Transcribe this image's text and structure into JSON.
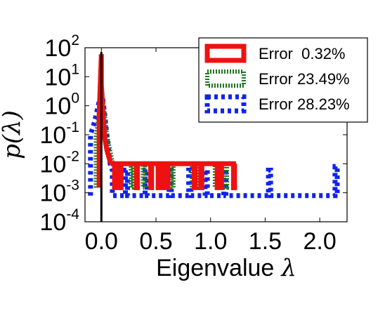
{
  "chart_data": {
    "type": "line",
    "xlabel": "Eigenvalue",
    "xlabel_symbol": "λ",
    "ylabel": "p(λ)",
    "xlim": [
      -0.15,
      2.25
    ],
    "yscale": "log",
    "ylim": [
      0.0001,
      100
    ],
    "xticks": [
      "0.0",
      "0.5",
      "1.0",
      "1.5",
      "2.0"
    ],
    "xtick_values": [
      0.0,
      0.5,
      1.0,
      1.5,
      2.0
    ],
    "yticks": [
      {
        "base": "10",
        "exp": "2",
        "value": 100
      },
      {
        "base": "10",
        "exp": "1",
        "value": 10
      },
      {
        "base": "10",
        "exp": "0",
        "value": 1
      },
      {
        "base": "10",
        "exp": "-1",
        "value": 0.1
      },
      {
        "base": "10",
        "exp": "-2",
        "value": 0.01
      },
      {
        "base": "10",
        "exp": "-3",
        "value": 0.001
      },
      {
        "base": "10",
        "exp": "-4",
        "value": 0.0001
      }
    ],
    "vertical_line_x": 0.0,
    "legend_placement": "top-right",
    "grid": false,
    "series": [
      {
        "name": "Error  0.32%",
        "color": "#ee1111",
        "style": "solid",
        "x": [
          -0.02,
          -0.02,
          0.0,
          0.0,
          0.01,
          0.02,
          0.03,
          0.05,
          0.08,
          0.1,
          0.12,
          0.12,
          0.13,
          0.13,
          0.17,
          0.17,
          0.18,
          0.18,
          0.32,
          0.32,
          0.33,
          0.33,
          0.45,
          0.45,
          0.46,
          0.46,
          0.52,
          0.52,
          0.53,
          0.53,
          0.55,
          0.55,
          0.56,
          0.56,
          0.6,
          0.6,
          0.61,
          0.61,
          0.85,
          0.85,
          0.86,
          0.86,
          0.91,
          0.91,
          0.92,
          0.92,
          1.06,
          1.06,
          1.07,
          1.07,
          1.09,
          1.09,
          1.1,
          1.1,
          1.21,
          1.21,
          1.22,
          1.22
        ],
        "y": [
          0.0015,
          0.5,
          60,
          5,
          1.0,
          0.3,
          0.08,
          0.03,
          0.012,
          0.01,
          0.01,
          0.0015,
          0.0015,
          0.01,
          0.01,
          0.0015,
          0.0015,
          0.01,
          0.01,
          0.0015,
          0.0015,
          0.01,
          0.01,
          0.0015,
          0.0015,
          0.01,
          0.01,
          0.0015,
          0.0015,
          0.01,
          0.01,
          0.0015,
          0.0015,
          0.01,
          0.01,
          0.0015,
          0.0015,
          0.01,
          0.01,
          0.0015,
          0.0015,
          0.01,
          0.01,
          0.0015,
          0.0015,
          0.01,
          0.01,
          0.0015,
          0.0015,
          0.01,
          0.01,
          0.0015,
          0.0015,
          0.01,
          0.01,
          0.0015,
          0.0015,
          0.01
        ]
      },
      {
        "name": "Error 23.49%",
        "color": "#227722",
        "style": "dotted-dense",
        "x": [
          -0.05,
          -0.05,
          -0.03,
          -0.01,
          0.0,
          0.01,
          0.03,
          0.05,
          0.08,
          0.1,
          0.12,
          0.12,
          0.14,
          0.14,
          0.27,
          0.27,
          0.29,
          0.29,
          0.38,
          0.38,
          0.4,
          0.4,
          0.53,
          0.53,
          0.55,
          0.55,
          0.64,
          0.64,
          0.66,
          0.66,
          0.83,
          0.83,
          0.85,
          0.85,
          0.9,
          0.9,
          0.92,
          0.92,
          1.04,
          1.04,
          1.06,
          1.06,
          1.13,
          1.13,
          1.15,
          1.15
        ],
        "y": [
          0.0015,
          0.08,
          0.3,
          2,
          8,
          2,
          0.5,
          0.1,
          0.03,
          0.012,
          0.01,
          0.0015,
          0.0015,
          0.01,
          0.01,
          0.0015,
          0.0015,
          0.01,
          0.01,
          0.0015,
          0.0015,
          0.01,
          0.01,
          0.0015,
          0.0015,
          0.01,
          0.01,
          0.0015,
          0.0015,
          0.01,
          0.01,
          0.0015,
          0.0015,
          0.01,
          0.01,
          0.0015,
          0.0015,
          0.01,
          0.01,
          0.0015,
          0.0015,
          0.01,
          0.01,
          0.0015,
          0.0015,
          0.01
        ]
      },
      {
        "name": "Error 28.23%",
        "color": "#1122ee",
        "style": "dotted",
        "x": [
          -0.1,
          -0.1,
          -0.06,
          -0.03,
          -0.01,
          0.0,
          0.01,
          0.03,
          0.05,
          0.08,
          0.1,
          0.1,
          0.22,
          0.22,
          0.24,
          0.24,
          0.4,
          0.4,
          0.42,
          0.42,
          0.62,
          0.62,
          0.64,
          0.64,
          0.8,
          0.8,
          0.82,
          0.82,
          0.95,
          0.95,
          0.97,
          0.97,
          1.12,
          1.12,
          1.14,
          1.14,
          1.53,
          1.53,
          1.55,
          1.55,
          2.14,
          2.14,
          2.16,
          2.16
        ],
        "y": [
          0.0008,
          0.1,
          0.3,
          1.0,
          2,
          3,
          2,
          0.5,
          0.1,
          0.01,
          0.006,
          0.0008,
          0.0008,
          0.006,
          0.006,
          0.0008,
          0.0008,
          0.006,
          0.006,
          0.0008,
          0.0008,
          0.006,
          0.006,
          0.0008,
          0.0008,
          0.006,
          0.006,
          0.0008,
          0.0008,
          0.006,
          0.006,
          0.0008,
          0.0008,
          0.006,
          0.006,
          0.0008,
          0.0008,
          0.006,
          0.006,
          0.0008,
          0.0008,
          0.008,
          0.008,
          0.0008
        ]
      }
    ]
  }
}
